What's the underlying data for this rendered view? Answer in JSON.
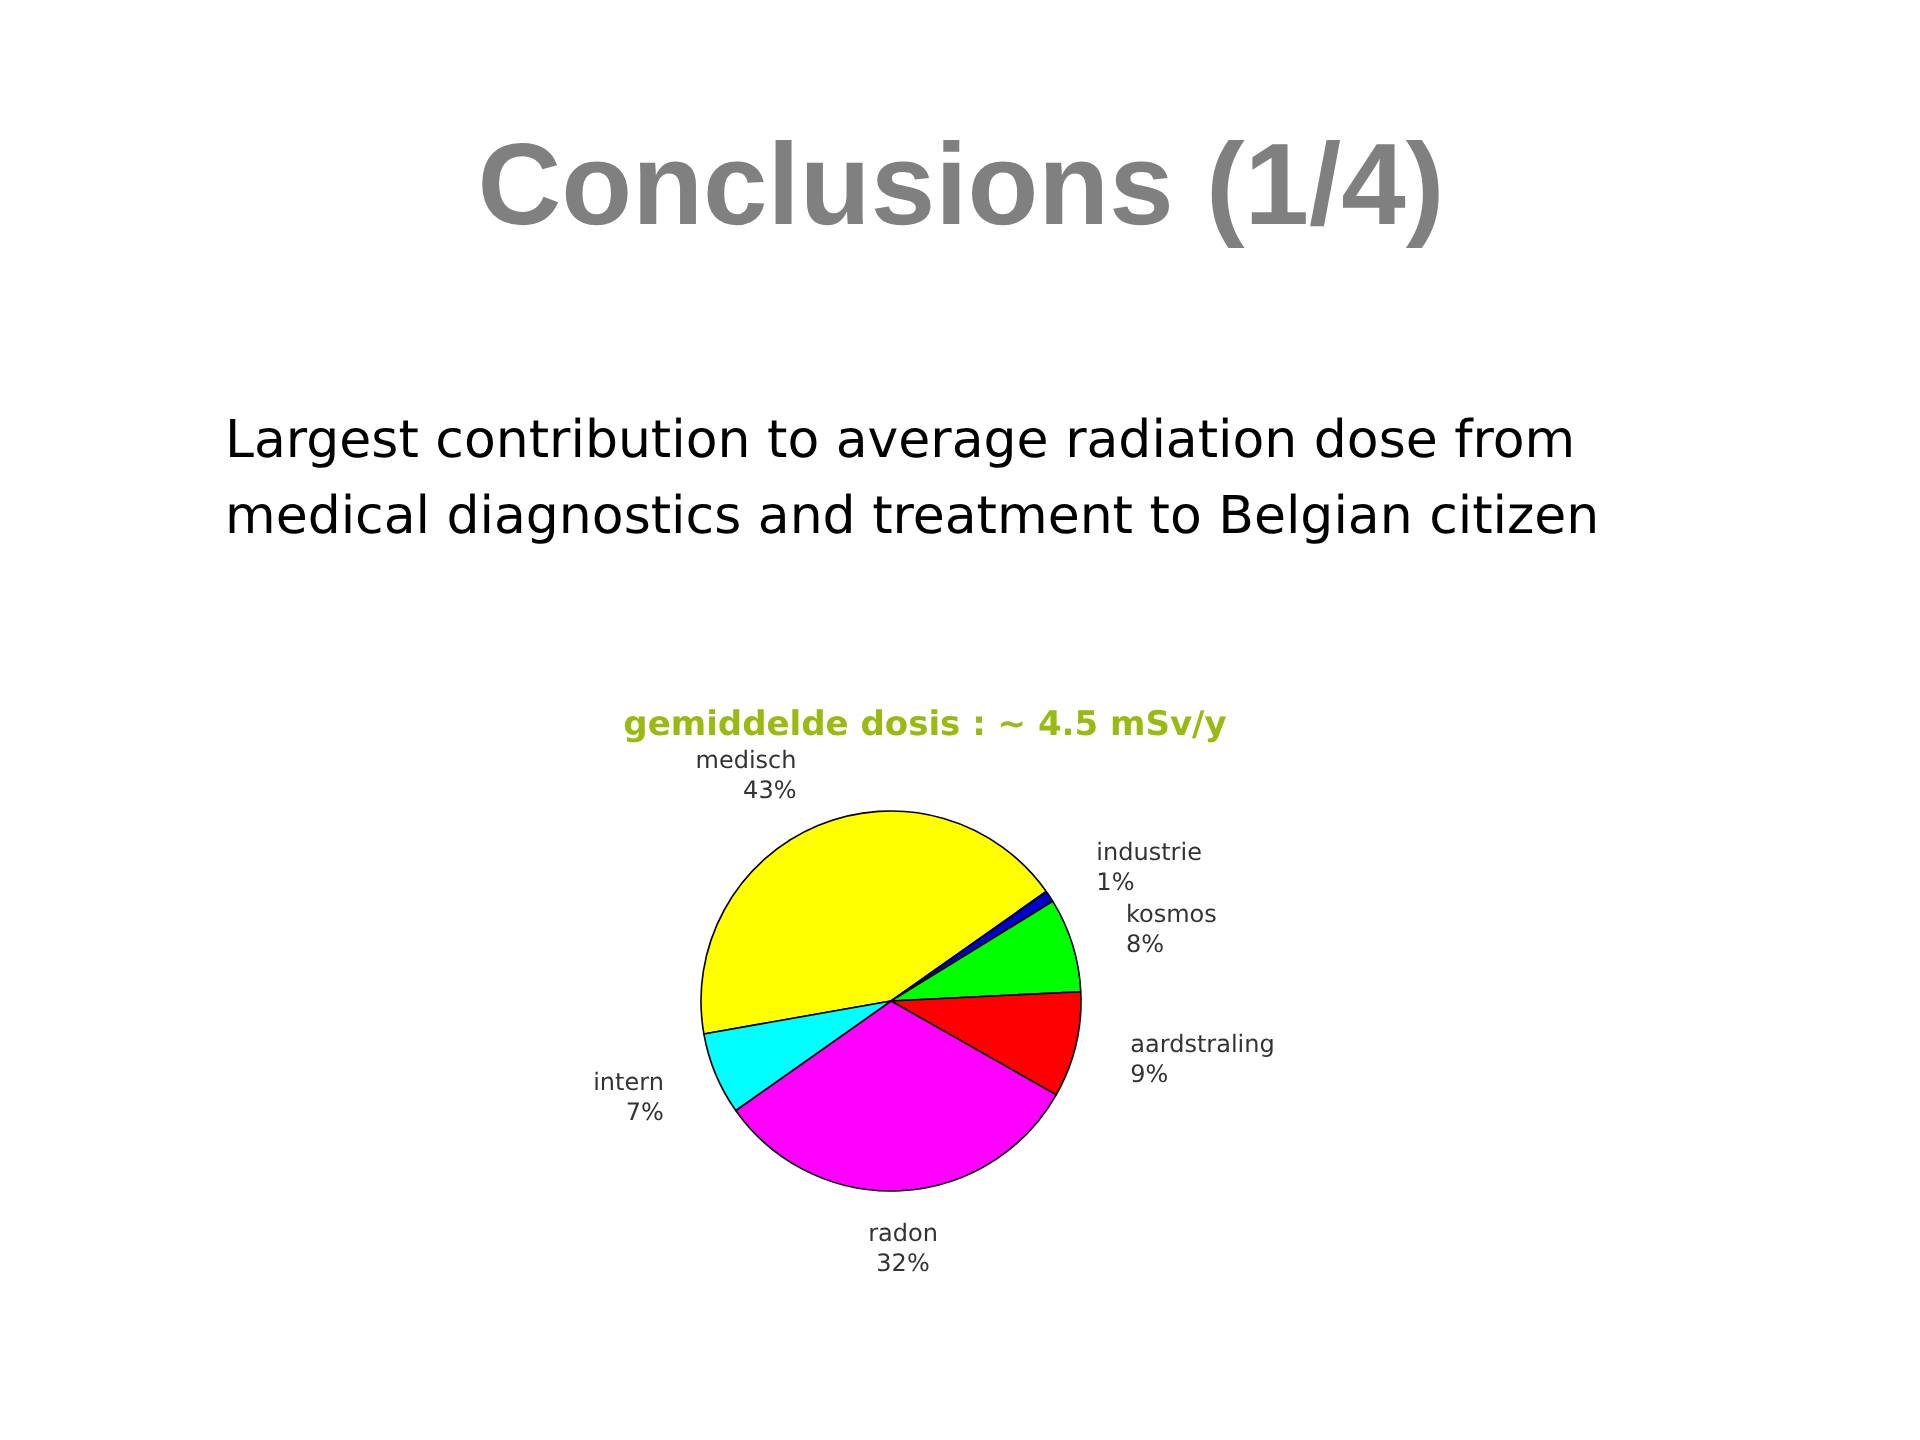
{
  "chart_data": {
    "type": "pie",
    "title": "Conclusions (1/4)",
    "subtitle": "Largest contribution to average radiation dose from medical diagnostics and treatment to Belgian citizen",
    "annotations": [
      "gemiddelde dosis : ~ 4.5 mSv/y"
    ],
    "categories": [
      "medisch",
      "industrie",
      "kosmos",
      "aardstraling",
      "radon",
      "intern"
    ],
    "values": [
      43,
      1,
      8,
      9,
      32,
      7
    ],
    "value_labels": [
      "43%",
      "1%",
      "8%",
      "9%",
      "32%",
      "7%"
    ],
    "colors": [
      "#ffff00",
      "#0000cc",
      "#00ff00",
      "#ff0000",
      "#ff00ff",
      "#00ffff"
    ]
  }
}
